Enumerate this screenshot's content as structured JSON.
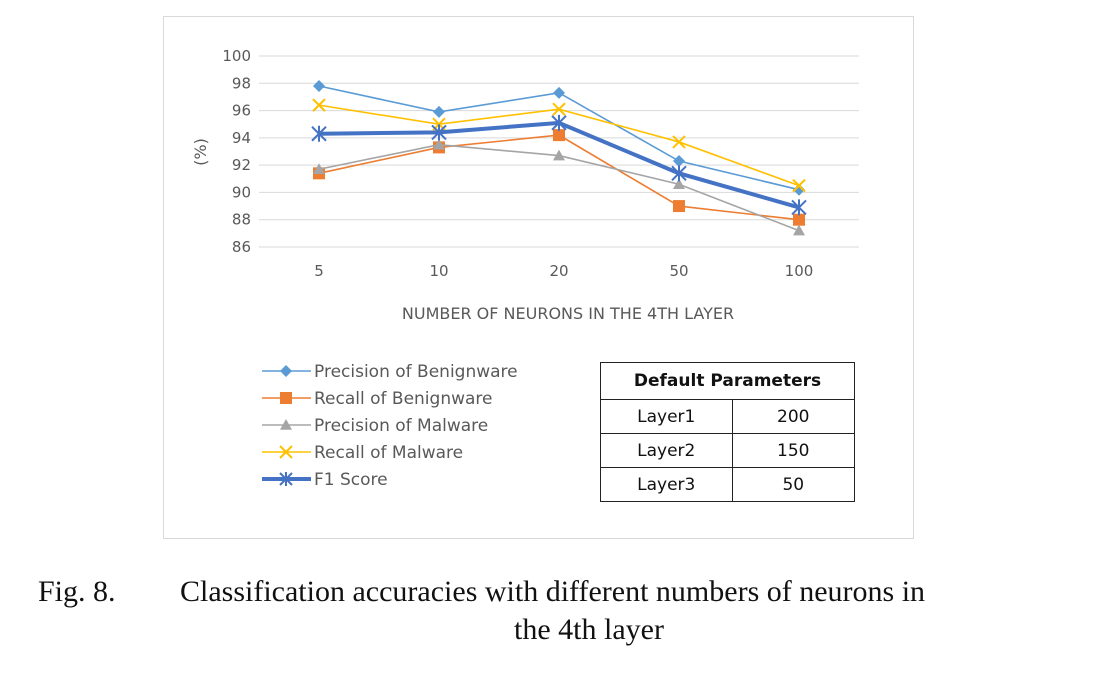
{
  "chart_data": {
    "type": "line",
    "categories": [
      "5",
      "10",
      "20",
      "50",
      "100"
    ],
    "xlabel": "NUMBER OF NEURONS IN THE 4TH LAYER",
    "ylabel": "(%)",
    "ylim": [
      86,
      100
    ],
    "yticks": [
      86,
      88,
      90,
      92,
      94,
      96,
      98,
      100
    ],
    "grid": true,
    "legend_position": "bottom-left",
    "series": [
      {
        "name": "Precision of Benignware",
        "values": [
          97.8,
          95.9,
          97.3,
          92.3,
          90.2
        ],
        "color": "#5b9bd5",
        "marker": "diamond"
      },
      {
        "name": "Recall of Benignware",
        "values": [
          91.4,
          93.3,
          94.2,
          89.0,
          88.0
        ],
        "color": "#ed7d31",
        "marker": "square"
      },
      {
        "name": "Precision of Malware",
        "values": [
          91.7,
          93.5,
          92.7,
          90.6,
          87.2
        ],
        "color": "#a5a5a5",
        "marker": "triangle"
      },
      {
        "name": "Recall of Malware",
        "values": [
          96.4,
          95.0,
          96.1,
          93.7,
          90.5
        ],
        "color": "#ffc000",
        "marker": "x"
      },
      {
        "name": "F1 Score",
        "values": [
          94.3,
          94.4,
          95.1,
          91.4,
          88.9
        ],
        "color": "#4472c4",
        "marker": "star",
        "bold": true
      }
    ]
  },
  "table": {
    "header": "Default Parameters",
    "rows": [
      {
        "layer": "Layer1",
        "value": "200"
      },
      {
        "layer": "Layer2",
        "value": "150"
      },
      {
        "layer": "Layer3",
        "value": "50"
      }
    ]
  },
  "caption": {
    "label": "Fig. 8.",
    "text_line1": "Classification accuracies with different numbers of neurons in",
    "text_line2": "the 4th layer"
  }
}
